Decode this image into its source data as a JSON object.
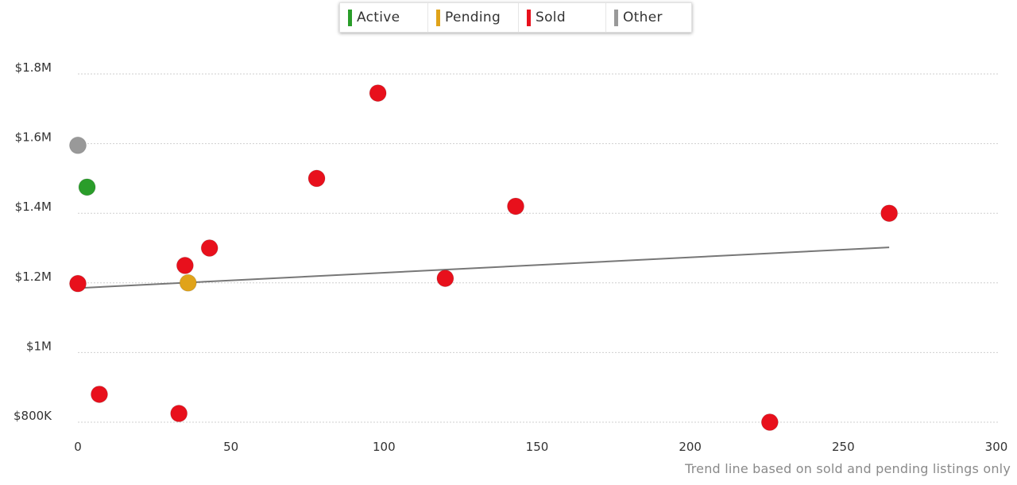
{
  "legend": {
    "items": [
      {
        "label": "Active",
        "color": "#2a9d2a"
      },
      {
        "label": "Pending",
        "color": "#e0a31a"
      },
      {
        "label": "Sold",
        "color": "#e8101c"
      },
      {
        "label": "Other",
        "color": "#999999"
      }
    ]
  },
  "footnote": "Trend line based on sold and pending listings only",
  "chart_data": {
    "type": "scatter",
    "xlim": [
      0,
      300
    ],
    "ylim": [
      800000,
      1800000
    ],
    "x_ticks": [
      0,
      50,
      100,
      150,
      200,
      250,
      300
    ],
    "x_tick_labels": [
      "0",
      "50",
      "100",
      "150",
      "200",
      "250",
      "300"
    ],
    "y_ticks": [
      800000,
      1000000,
      1200000,
      1400000,
      1600000,
      1800000
    ],
    "y_tick_labels": [
      "$800K",
      "$1M",
      "$1.2M",
      "$1.4M",
      "$1.6M",
      "$1.8M"
    ],
    "grid": "horizontal-dotted",
    "legend_position": "top-center",
    "series": [
      {
        "name": "Active",
        "color": "#2a9d2a",
        "points": [
          {
            "x": 3,
            "y": 1475000
          }
        ]
      },
      {
        "name": "Pending",
        "color": "#e0a31a",
        "points": [
          {
            "x": 36,
            "y": 1200000
          }
        ]
      },
      {
        "name": "Sold",
        "color": "#e8101c",
        "points": [
          {
            "x": 98,
            "y": 1745000
          },
          {
            "x": 78,
            "y": 1500000
          },
          {
            "x": 143,
            "y": 1420000
          },
          {
            "x": 265,
            "y": 1400000
          },
          {
            "x": 43,
            "y": 1300000
          },
          {
            "x": 35,
            "y": 1250000
          },
          {
            "x": 120,
            "y": 1213000
          },
          {
            "x": 0,
            "y": 1198000
          },
          {
            "x": 7,
            "y": 880000
          },
          {
            "x": 33,
            "y": 825000
          },
          {
            "x": 226,
            "y": 800000
          }
        ]
      },
      {
        "name": "Other",
        "color": "#999999",
        "points": [
          {
            "x": 0,
            "y": 1595000
          }
        ]
      }
    ],
    "trend_line": {
      "color": "#777777",
      "points": [
        {
          "x": 0,
          "y": 1185000
        },
        {
          "x": 265,
          "y": 1302000
        }
      ]
    }
  }
}
